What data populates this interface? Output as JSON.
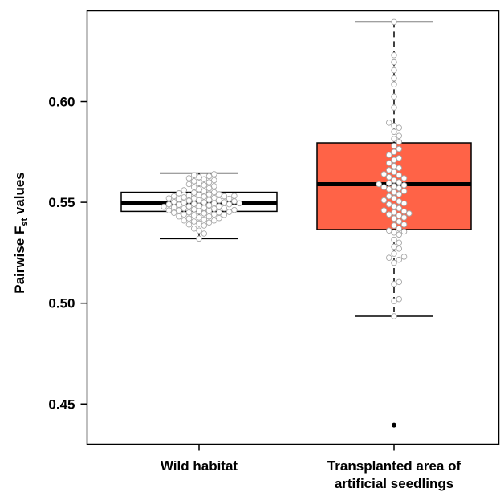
{
  "chart_data": {
    "type": "boxplot",
    "title": "",
    "xlabel": "",
    "ylabel": {
      "prefix": "Pairwise F",
      "subscript": "st",
      "suffix": " values"
    },
    "ylim": [
      0.43,
      0.645
    ],
    "yticks": [
      0.45,
      0.5,
      0.55,
      0.6
    ],
    "ytick_labels": [
      "0.45",
      "0.50",
      "0.55",
      "0.60"
    ],
    "grid": false,
    "categories": [
      {
        "label_lines": [
          "Wild habitat"
        ]
      },
      {
        "label_lines": [
          "Transplanted area of",
          "artificial seedlings"
        ]
      }
    ],
    "boxes": [
      {
        "whisker_low": 0.532,
        "q1": 0.5455,
        "median": 0.5495,
        "q3": 0.555,
        "whisker_high": 0.5645,
        "outliers": [],
        "fill": "#ffffff",
        "whisker_style": "dashed"
      },
      {
        "whisker_low": 0.4935,
        "q1": 0.5365,
        "median": 0.559,
        "q3": 0.5795,
        "whisker_high": 0.6395,
        "outliers": [
          0.4395
        ],
        "fill": "#ff6347",
        "whisker_style": "dashed"
      }
    ],
    "points": [
      [
        0.532,
        0.5345,
        0.536,
        0.537,
        0.5385,
        0.539,
        0.5395,
        0.54,
        0.5405,
        0.541,
        0.541,
        0.5415,
        0.542,
        0.5422,
        0.5425,
        0.543,
        0.543,
        0.5435,
        0.5438,
        0.544,
        0.544,
        0.5445,
        0.5448,
        0.545,
        0.545,
        0.5452,
        0.5455,
        0.5458,
        0.546,
        0.546,
        0.5462,
        0.5465,
        0.5468,
        0.547,
        0.547,
        0.5472,
        0.5475,
        0.5478,
        0.548,
        0.548,
        0.5482,
        0.5485,
        0.5488,
        0.549,
        0.549,
        0.5492,
        0.5495,
        0.5495,
        0.5498,
        0.55,
        0.55,
        0.5502,
        0.5505,
        0.5508,
        0.551,
        0.551,
        0.5512,
        0.5515,
        0.5518,
        0.552,
        0.552,
        0.5522,
        0.5525,
        0.5528,
        0.553,
        0.553,
        0.5532,
        0.5535,
        0.5538,
        0.554,
        0.554,
        0.5545,
        0.5548,
        0.555,
        0.5555,
        0.556,
        0.5565,
        0.557,
        0.5575,
        0.558,
        0.5585,
        0.559,
        0.5595,
        0.56,
        0.5605,
        0.561,
        0.5615,
        0.562,
        0.5625,
        0.563,
        0.5635,
        0.564
      ],
      [
        0.4935,
        0.501,
        0.502,
        0.5095,
        0.5105,
        0.52,
        0.5215,
        0.5225,
        0.523,
        0.5245,
        0.527,
        0.528,
        0.53,
        0.5315,
        0.534,
        0.535,
        0.5355,
        0.536,
        0.537,
        0.5385,
        0.539,
        0.5405,
        0.542,
        0.5425,
        0.5435,
        0.544,
        0.5445,
        0.545,
        0.5455,
        0.546,
        0.547,
        0.548,
        0.549,
        0.5495,
        0.5505,
        0.551,
        0.552,
        0.553,
        0.554,
        0.555,
        0.5555,
        0.5565,
        0.557,
        0.5575,
        0.558,
        0.5585,
        0.559,
        0.5595,
        0.56,
        0.561,
        0.562,
        0.5625,
        0.5635,
        0.564,
        0.565,
        0.566,
        0.567,
        0.568,
        0.5695,
        0.571,
        0.572,
        0.5735,
        0.575,
        0.5765,
        0.578,
        0.58,
        0.5815,
        0.583,
        0.585,
        0.587,
        0.588,
        0.5895,
        0.597,
        0.6025,
        0.6085,
        0.6115,
        0.6155,
        0.6195,
        0.623,
        0.6395
      ]
    ]
  }
}
